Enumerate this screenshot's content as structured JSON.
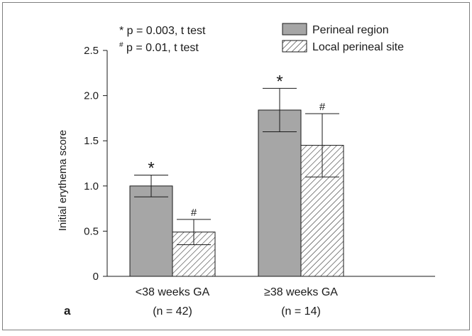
{
  "panel_label": "a",
  "annotations": {
    "star_note": "* p = 0.003, t test",
    "hash_note_symbol": "#",
    "hash_note_text": " p = 0.01, t test",
    "star_marker": "*",
    "hash_marker": "#"
  },
  "chart_data": {
    "type": "bar",
    "ylabel": "Initial erythema score",
    "ylim": [
      0,
      2.5
    ],
    "yticks": [
      "0",
      "0.5",
      "1.0",
      "1.5",
      "2.0",
      "2.5"
    ],
    "categories": [
      "<38 weeks GA",
      "≥38 weeks GA"
    ],
    "category_sublabels": [
      "(n = 42)",
      "(n = 14)"
    ],
    "legend_position": "top-right",
    "series": [
      {
        "name": "Perineal region",
        "values": [
          1.0,
          1.84
        ],
        "error": [
          0.12,
          0.24
        ],
        "marker": "*",
        "fill": "#a6a6a6"
      },
      {
        "name": "Local perineal site",
        "values": [
          0.49,
          1.45
        ],
        "error": [
          0.14,
          0.35
        ],
        "marker": "#",
        "fill": "hatch"
      }
    ]
  }
}
